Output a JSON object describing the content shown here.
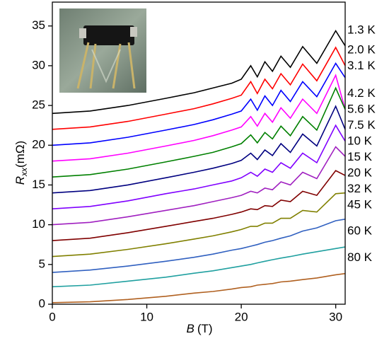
{
  "chart_data": {
    "type": "line",
    "x_label": "B",
    "x_label_unit": "(T)",
    "y_label": "R",
    "y_label_sub": "xx",
    "y_label_unit": "(mΩ)",
    "xlim": [
      0,
      31
    ],
    "ylim": [
      0,
      38
    ],
    "xticks": [
      0,
      10,
      20,
      30
    ],
    "yticks": [
      0,
      5,
      10,
      15,
      20,
      25,
      30,
      35
    ],
    "x": [
      0,
      4,
      8,
      12,
      15,
      17,
      19,
      20,
      21,
      21.7,
      22.5,
      23.3,
      24.2,
      25.2,
      26.5,
      28,
      30,
      31
    ],
    "series": [
      {
        "name": "1.3 K",
        "color": "#000000",
        "values": [
          24,
          24.3,
          25,
          25.9,
          26.6,
          27.2,
          27.8,
          28.3,
          30.0,
          28.6,
          30.5,
          29.3,
          31.2,
          29.8,
          32.4,
          30.3,
          34.4,
          32.5
        ]
      },
      {
        "name": "2.0 K",
        "color": "#ff0000",
        "values": [
          22,
          22.3,
          23,
          23.9,
          24.6,
          25.2,
          25.9,
          26.3,
          28.0,
          26.5,
          28.3,
          27.1,
          29.0,
          27.6,
          30.2,
          28.1,
          32.3,
          30.0
        ]
      },
      {
        "name": "3.1 K",
        "color": "#0000ff",
        "values": [
          20,
          20.3,
          21,
          21.9,
          22.6,
          23.2,
          23.9,
          24.3,
          25.8,
          24.4,
          26.2,
          25.0,
          26.9,
          25.5,
          28.0,
          26.1,
          30.3,
          28.5
        ]
      },
      {
        "name": "4.2 K",
        "color": "#ff00ff",
        "values": [
          18,
          18.3,
          19,
          19.9,
          20.6,
          21.2,
          21.9,
          22.3,
          23.6,
          22.4,
          24.0,
          22.9,
          24.7,
          23.4,
          25.8,
          24.0,
          28.8,
          24.5
        ]
      },
      {
        "name": "5.6 K",
        "color": "#008000",
        "values": [
          16,
          16.3,
          17,
          17.9,
          18.6,
          19.1,
          19.8,
          20.2,
          21.3,
          20.3,
          21.6,
          20.8,
          22.4,
          21.2,
          23.6,
          21.9,
          27.2,
          24.5
        ]
      },
      {
        "name": "7.5 K",
        "color": "#000080",
        "values": [
          14,
          14.3,
          15,
          15.9,
          16.6,
          17.1,
          17.7,
          18.1,
          19.0,
          18.2,
          19.4,
          18.7,
          20.2,
          19.1,
          21.4,
          19.9,
          24.9,
          22.0
        ]
      },
      {
        "name": "10 K",
        "color": "#8000ff",
        "values": [
          12,
          12.3,
          13,
          13.9,
          14.5,
          15,
          15.5,
          15.9,
          16.6,
          16.1,
          17.0,
          16.6,
          17.8,
          17.1,
          19.0,
          17.8,
          22.5,
          20.5
        ]
      },
      {
        "name": "15 K",
        "color": "#a020c0",
        "values": [
          10,
          10.3,
          11,
          11.8,
          12.4,
          12.9,
          13.4,
          13.7,
          14.2,
          14.0,
          14.6,
          14.4,
          15.4,
          15.0,
          16.6,
          15.8,
          19.8,
          18.6
        ]
      },
      {
        "name": "20 K",
        "color": "#800000",
        "values": [
          8,
          8.3,
          9,
          9.8,
          10.4,
          10.8,
          11.3,
          11.6,
          12.0,
          11.9,
          12.4,
          12.3,
          13.1,
          12.9,
          14.2,
          13.7,
          16.8,
          16.2
        ]
      },
      {
        "name": "32 K",
        "color": "#808000",
        "values": [
          6,
          6.3,
          6.9,
          7.6,
          8.2,
          8.6,
          9.1,
          9.4,
          9.8,
          9.8,
          10.2,
          10.2,
          10.8,
          10.8,
          11.8,
          11.6,
          13.9,
          14.0
        ]
      },
      {
        "name": "45 K",
        "color": "#3060c0",
        "values": [
          4,
          4.3,
          4.8,
          5.4,
          5.9,
          6.3,
          6.8,
          7.0,
          7.3,
          7.5,
          7.8,
          8.0,
          8.3,
          8.6,
          9.2,
          9.6,
          10.5,
          10.7
        ]
      },
      {
        "name": "60 K",
        "color": "#20a0a0",
        "values": [
          2.2,
          2.4,
          2.9,
          3.4,
          3.9,
          4.2,
          4.6,
          4.8,
          5.0,
          5.2,
          5.4,
          5.6,
          5.8,
          6.0,
          6.3,
          6.6,
          7.0,
          7.2
        ]
      },
      {
        "name": "80 K",
        "color": "#b06020",
        "values": [
          0.2,
          0.3,
          0.6,
          1.0,
          1.4,
          1.6,
          1.9,
          2.1,
          2.2,
          2.4,
          2.5,
          2.6,
          2.8,
          2.9,
          3.1,
          3.3,
          3.7,
          3.85
        ]
      }
    ]
  }
}
